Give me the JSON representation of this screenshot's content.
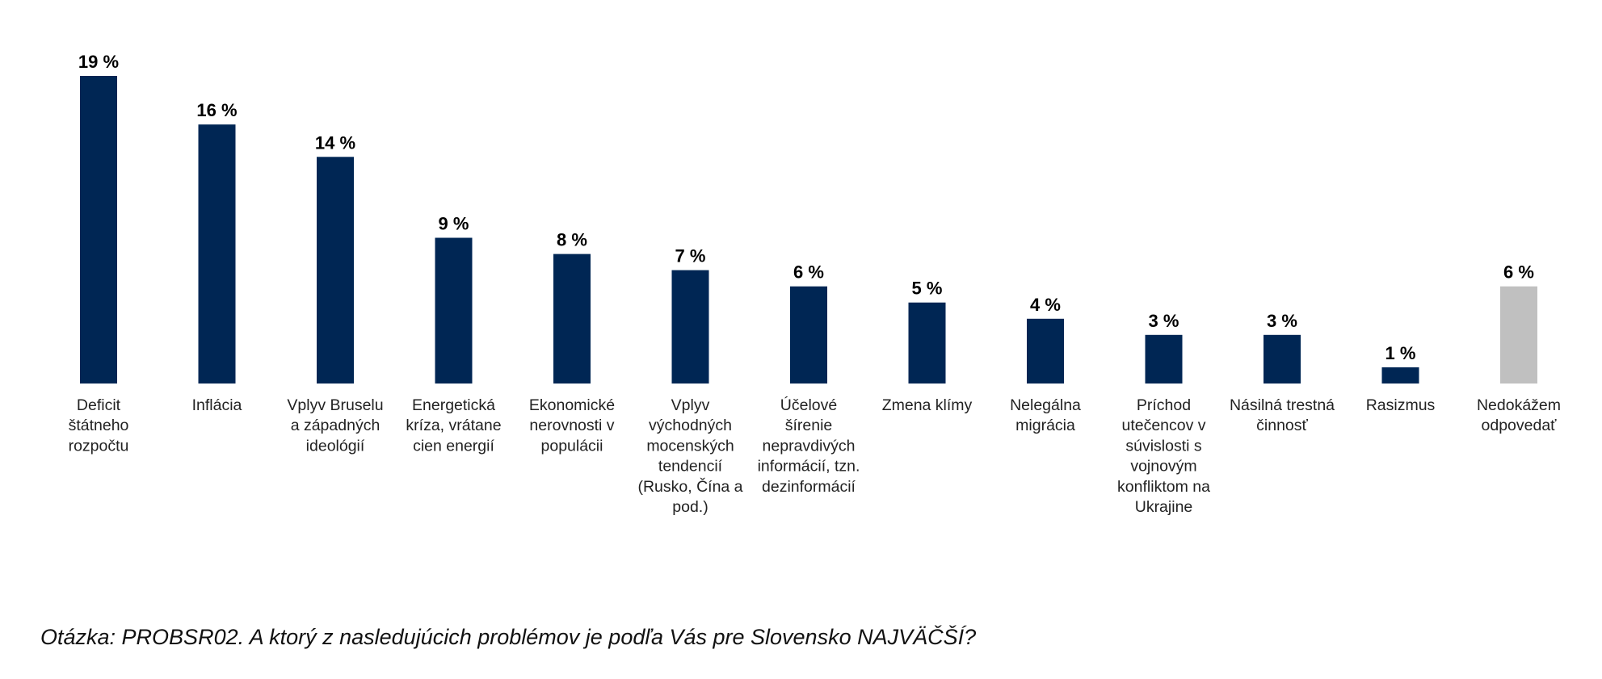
{
  "chart_data": {
    "type": "bar",
    "categories": [
      "Deficit štátneho rozpočtu",
      "Inflácia",
      "Vplyv Bruselu a západných ideológií",
      "Energetická kríza, vrátane cien energií",
      "Ekonomické nerovnosti v populácii",
      "Vplyv východných mocenských tendencií (Rusko, Čína a pod.)",
      "Účelové šírenie nepravdivých informácií, tzn. dezinformácií",
      "Zmena klímy",
      "Nelegálna migrácia",
      "Príchod utečencov v súvislosti s vojnovým konfliktom na Ukrajine",
      "Násilná trestná činnosť",
      "Rasizmus",
      "Nedokážem odpovedať"
    ],
    "label_lines": [
      [
        "Deficit",
        "štátneho",
        "rozpočtu"
      ],
      [
        "Inflácia"
      ],
      [
        "Vplyv Bruselu",
        "a západných",
        "ideológií"
      ],
      [
        "Energetická",
        "kríza, vrátane",
        "cien energií"
      ],
      [
        "Ekonomické",
        "nerovnosti v",
        "populácii"
      ],
      [
        "Vplyv",
        "východných",
        "mocenských",
        "tendencií",
        "(Rusko, Čína a",
        "pod.)"
      ],
      [
        "Účelové",
        "šírenie",
        "nepravdivých",
        "informácií, tzn.",
        "dezinformácií"
      ],
      [
        "Zmena klímy"
      ],
      [
        "Nelegálna",
        "migrácia"
      ],
      [
        "Príchod",
        "utečencov v",
        "súvislosti s",
        "vojnovým",
        "konfliktom na",
        "Ukrajine"
      ],
      [
        "Násilná trestná",
        "činnosť"
      ],
      [
        "Rasizmus"
      ],
      [
        "Nedokážem",
        "odpovedať"
      ]
    ],
    "values": [
      19,
      16,
      14,
      9,
      8,
      7,
      6,
      5,
      4,
      3,
      3,
      1,
      6
    ],
    "value_labels": [
      "19 %",
      "16 %",
      "14 %",
      "9 %",
      "8 %",
      "7 %",
      "6 %",
      "5 %",
      "4 %",
      "3 %",
      "3 %",
      "1 %",
      "6 %"
    ],
    "bar_colors": [
      "#002654",
      "#002654",
      "#002654",
      "#002654",
      "#002654",
      "#002654",
      "#002654",
      "#002654",
      "#002654",
      "#002654",
      "#002654",
      "#002654",
      "#c0c0c0"
    ],
    "ylim": [
      0,
      19
    ],
    "grid": false,
    "legend": "none"
  },
  "footnote": "Otázka: PROBSR02. A ktorý z nasledujúcich problémov je podľa Vás pre Slovensko NAJVÄČŠÍ?"
}
